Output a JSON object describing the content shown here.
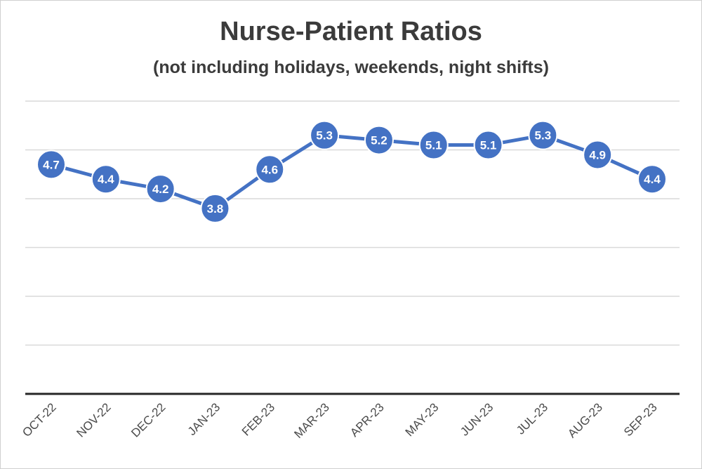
{
  "chart_data": {
    "type": "line",
    "title": "Nurse-Patient Ratios",
    "subtitle": "(not including holidays, weekends, night shifts)",
    "xlabel": "",
    "ylabel": "",
    "categories": [
      "OCT-22",
      "NOV-22",
      "DEC-22",
      "JAN-23",
      "FEB-23",
      "MAR-23",
      "APR-23",
      "MAY-23",
      "JUN-23",
      "JUL-23",
      "AUG-23",
      "SEP-23"
    ],
    "series": [
      {
        "values": [
          4.7,
          4.4,
          4.2,
          3.8,
          4.6,
          5.3,
          5.2,
          5.1,
          5.1,
          5.3,
          4.9,
          4.4
        ]
      }
    ],
    "data_labels": [
      "4.7",
      "4.4",
      "4.2",
      "3.8",
      "4.6",
      "5.3",
      "5.2",
      "5.1",
      "5.1",
      "5.3",
      "4.9",
      "4.4"
    ],
    "ylim": [
      0,
      6
    ],
    "y_gridline_step": 1,
    "y_tick_labels_shown": false,
    "grid": true,
    "legend": "none",
    "colors": {
      "line": "#4472C4",
      "marker_border": "#ffffff",
      "gridline": "#d9d9d9",
      "axis": "#262626",
      "label_text": "#ffffff"
    }
  }
}
